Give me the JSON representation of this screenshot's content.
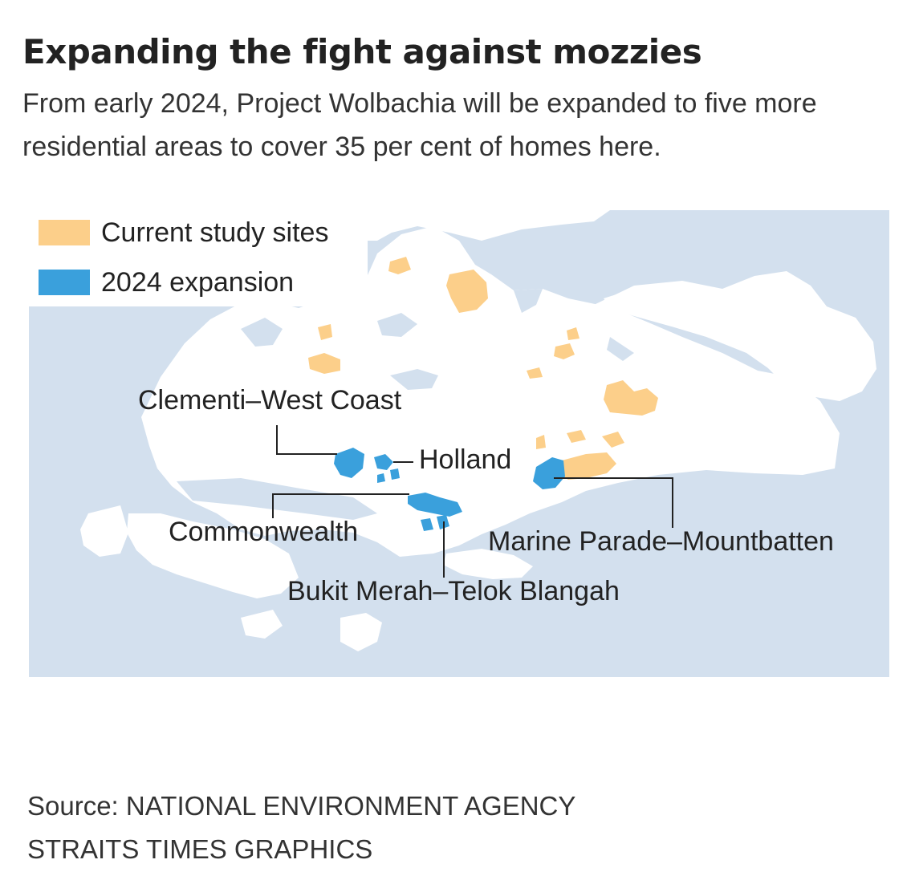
{
  "title": "Expanding the fight against mozzies",
  "subtitle": "From early 2024, Project Wolbachia will be expanded to five more residential areas to cover 35 per cent of homes here.",
  "legend": [
    {
      "label": "Current study sites",
      "color": "#fccf8a"
    },
    {
      "label": "2024 expansion",
      "color": "#3aa0dc"
    }
  ],
  "colors": {
    "sea": "#d3e0ee",
    "land": "#ffffff",
    "current_sites": "#fccf8a",
    "expansion": "#3aa0dc",
    "leader": "#222222"
  },
  "areas": {
    "clementi": "Clementi–West Coast",
    "holland": "Holland",
    "commonwealth": "Commonwealth",
    "bukit_merah": "Bukit Merah–Telok Blangah",
    "marine_parade": "Marine Parade–Mountbatten"
  },
  "source_lines": [
    "Source: NATIONAL ENVIRONMENT AGENCY",
    "STRAITS TIMES GRAPHICS"
  ]
}
